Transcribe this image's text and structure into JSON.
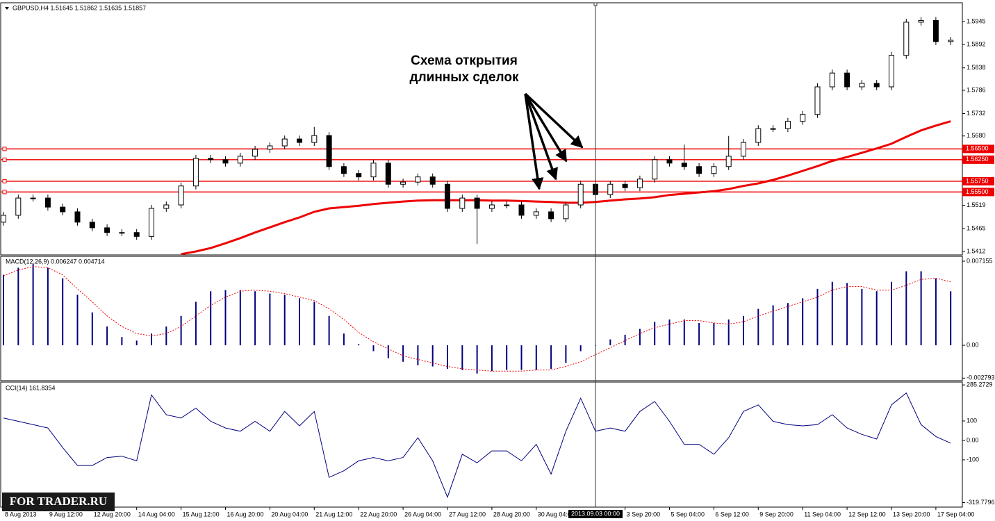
{
  "chart_data": [
    {
      "type": "candlestick",
      "title": "GBPUSD,H4  1.51645 1.51862 1.51635 1.51857",
      "annotations": [
        "Схема открытия",
        "длинных сделок"
      ],
      "categories": [
        "8 Aug 2013",
        null,
        null,
        "9 Aug 12:00",
        null,
        null,
        "12 Aug 20:00",
        null,
        null,
        "14 Aug 04:00",
        null,
        null,
        "15 Aug 12:00",
        null,
        null,
        "16 Aug 20:00",
        null,
        null,
        "20 Aug 04:00",
        null,
        null,
        "21 Aug 12:00",
        null,
        null,
        "22 Aug 20:00",
        null,
        null,
        "26 Aug 04:00",
        null,
        null,
        "27 Aug 12:00",
        null,
        null,
        "28 Aug 20:00",
        null,
        null,
        "30 Aug 04:00",
        null,
        null,
        null,
        "2013.09.03 00:00",
        null,
        "3 Sep 20:00",
        null,
        null,
        "5 Sep 04:00",
        null,
        null,
        "6 Sep 12:00",
        null,
        null,
        "9 Sep 20:00",
        null,
        null,
        "11 Sep 04:00",
        null,
        null,
        "12 Sep 12:00",
        null,
        null,
        "13 Sep 20:00",
        null,
        null,
        "17 Sep 04:00",
        null
      ],
      "crosshair": 40,
      "open": [
        1.548,
        1.5496,
        1.5536,
        1.5536,
        1.5515,
        1.5504,
        1.548,
        1.5467,
        1.5456,
        1.5456,
        1.5447,
        1.5512,
        1.552,
        1.5564,
        1.5628,
        1.5625,
        1.5617,
        1.5633,
        1.5649,
        1.5657,
        1.5673,
        1.5665,
        1.5681,
        1.5609,
        1.5593,
        1.5585,
        1.5617,
        1.5568,
        1.5573,
        1.5585,
        1.5568,
        1.5512,
        1.5536,
        1.5512,
        1.552,
        1.552,
        1.5496,
        1.5504,
        1.5488,
        1.552,
        1.5568,
        1.5544,
        1.5568,
        1.556,
        1.558,
        1.5625,
        1.5617,
        1.5609,
        1.5593,
        1.5609,
        1.5633,
        1.5665,
        1.5697,
        1.5697,
        1.5714,
        1.573,
        1.5794,
        1.5826,
        1.5794,
        1.5802,
        1.5794,
        1.5867,
        1.5944,
        1.5948,
        1.5899
      ],
      "high": [
        1.5504,
        1.5544,
        1.5544,
        1.5544,
        1.5523,
        1.5512,
        1.5488,
        1.5475,
        1.5464,
        1.5464,
        1.552,
        1.5528,
        1.5572,
        1.5636,
        1.5636,
        1.5633,
        1.5641,
        1.5657,
        1.5665,
        1.5681,
        1.5681,
        1.5701,
        1.5689,
        1.5617,
        1.5601,
        1.5625,
        1.5625,
        1.5581,
        1.5593,
        1.5593,
        1.5576,
        1.5544,
        1.5544,
        1.5528,
        1.5528,
        1.5528,
        1.5512,
        1.5512,
        1.5528,
        1.5576,
        1.5576,
        1.5576,
        1.5576,
        1.5588,
        1.5633,
        1.5633,
        1.566,
        1.5617,
        1.5617,
        1.568,
        1.5673,
        1.5705,
        1.5705,
        1.5722,
        1.5738,
        1.5802,
        1.5834,
        1.5834,
        1.581,
        1.581,
        1.5875,
        1.5952,
        1.5956,
        1.5956,
        1.591
      ],
      "low": [
        1.5472,
        1.5488,
        1.5528,
        1.5507,
        1.5496,
        1.5472,
        1.5459,
        1.5448,
        1.5448,
        1.5439,
        1.5439,
        1.5504,
        1.5512,
        1.5556,
        1.5617,
        1.5609,
        1.5609,
        1.5625,
        1.5641,
        1.5649,
        1.5657,
        1.5657,
        1.5601,
        1.5585,
        1.5577,
        1.5577,
        1.556,
        1.556,
        1.5565,
        1.556,
        1.5504,
        1.5504,
        1.543,
        1.5504,
        1.5512,
        1.5488,
        1.5488,
        1.548,
        1.548,
        1.5512,
        1.5536,
        1.5536,
        1.5552,
        1.5552,
        1.5572,
        1.5609,
        1.5601,
        1.5585,
        1.5585,
        1.5601,
        1.5625,
        1.5657,
        1.5689,
        1.5689,
        1.5706,
        1.5722,
        1.5786,
        1.5786,
        1.5786,
        1.5786,
        1.5786,
        1.5859,
        1.5936,
        1.5891,
        1.5891
      ],
      "close": [
        1.5496,
        1.5536,
        1.5536,
        1.5515,
        1.5504,
        1.548,
        1.5467,
        1.5456,
        1.5456,
        1.5447,
        1.5512,
        1.552,
        1.5564,
        1.5628,
        1.5625,
        1.5617,
        1.5633,
        1.5649,
        1.5657,
        1.5673,
        1.5665,
        1.5681,
        1.5609,
        1.5593,
        1.5585,
        1.5617,
        1.5568,
        1.5573,
        1.5585,
        1.5568,
        1.5512,
        1.5536,
        1.5512,
        1.552,
        1.552,
        1.5496,
        1.5504,
        1.5488,
        1.552,
        1.5568,
        1.5544,
        1.5568,
        1.556,
        1.558,
        1.5625,
        1.5617,
        1.5609,
        1.5593,
        1.5609,
        1.5633,
        1.5665,
        1.5697,
        1.5697,
        1.5714,
        1.573,
        1.5794,
        1.5826,
        1.5794,
        1.5802,
        1.5794,
        1.5867,
        1.5944,
        1.5948,
        1.5899,
        1.5902
      ],
      "lines": [
        {
          "color": "#ee0000",
          "values": [
            null,
            null,
            null,
            null,
            null,
            null,
            null,
            null,
            null,
            null,
            null,
            null,
            1.5406,
            1.5412,
            1.542,
            1.5431,
            1.5443,
            1.5456,
            1.5468,
            1.548,
            1.5491,
            1.5504,
            1.5512,
            1.5515,
            1.5518,
            1.5522,
            1.5525,
            1.5528,
            1.553,
            1.5531,
            1.5531,
            1.5531,
            1.5531,
            1.553,
            1.553,
            1.5529,
            1.5528,
            1.5527,
            1.5525,
            1.5525,
            1.5527,
            1.553,
            1.5533,
            1.5535,
            1.5538,
            1.5543,
            1.5546,
            1.5549,
            1.5552,
            1.5557,
            1.5564,
            1.557,
            1.5578,
            1.5588,
            1.5599,
            1.561,
            1.5622,
            1.5631,
            1.5641,
            1.5651,
            1.5662,
            1.5678,
            1.5693,
            1.5704,
            1.5714
          ]
        }
      ],
      "hlines": [
        {
          "value": 1.565,
          "label": "1.56500"
        },
        {
          "value": 1.5625,
          "label": "1.56250"
        },
        {
          "value": 1.5575,
          "label": "1.55750"
        },
        {
          "value": 1.555,
          "label": "1.55500"
        }
      ],
      "hline_color": "#ee0000",
      "ylim": [
        1.5404,
        1.5989
      ],
      "yticks": [
        1.5945,
        1.5892,
        1.5838,
        1.5786,
        1.5732,
        {
          "value": 1.568,
          "label": "1.5680"
        },
        1.5519,
        1.5465,
        1.5412
      ]
    },
    {
      "type": "macd",
      "title": "MACD(12,26,9) 0.006247 0.004714",
      "color": "#000080",
      "signal_color": "#ee0000",
      "values": [
        0.006,
        0.0066,
        0.0069,
        0.0066,
        0.0057,
        0.0043,
        0.0028,
        0.0016,
        0.0007,
        0.0004,
        0.001,
        0.0016,
        0.0025,
        0.0037,
        0.0046,
        0.0047,
        0.0047,
        0.0046,
        0.0044,
        0.0043,
        0.004,
        0.0037,
        0.0025,
        0.001,
        0.0001,
        -0.0005,
        -0.0011,
        -0.0014,
        -0.0017,
        -0.0018,
        -0.002,
        -0.0021,
        -0.0024,
        -0.0022,
        -0.0021,
        -0.0021,
        -0.0021,
        -0.002,
        -0.0015,
        -0.0005,
        0.0,
        0.0005,
        0.0009,
        0.0014,
        0.002,
        0.0022,
        0.0022,
        0.0019,
        0.0019,
        0.0022,
        0.0025,
        0.0031,
        0.0034,
        0.0036,
        0.004,
        0.0048,
        0.0054,
        0.0053,
        0.0048,
        0.0046,
        0.0054,
        0.0063,
        0.0063,
        0.0057,
        0.0046
      ],
      "signal": [
        0.0059,
        0.0064,
        0.0067,
        0.0066,
        0.006,
        0.0048,
        0.0037,
        0.0025,
        0.0016,
        0.001,
        0.0008,
        0.001,
        0.0016,
        0.0025,
        0.0034,
        0.0041,
        0.0046,
        0.0047,
        0.0046,
        0.0044,
        0.0041,
        0.0038,
        0.0031,
        0.0022,
        0.0011,
        0.0003,
        -0.0003,
        -0.0009,
        -0.0012,
        -0.0015,
        -0.0018,
        -0.002,
        -0.0021,
        -0.0022,
        -0.0022,
        -0.0022,
        -0.0021,
        -0.0021,
        -0.0018,
        -0.0014,
        -0.0008,
        -0.0002,
        0.0004,
        0.001,
        0.0015,
        0.0018,
        0.0021,
        0.0021,
        0.0019,
        0.0018,
        0.002,
        0.0025,
        0.0029,
        0.0033,
        0.0037,
        0.0041,
        0.0047,
        0.005,
        0.005,
        0.0047,
        0.0047,
        0.0051,
        0.0056,
        0.0057,
        0.0054
      ],
      "ylim": [
        -0.00301,
        0.00757
      ],
      "yticks": [
        0.007155,
        {
          "value": 0,
          "label": "0.00"
        },
        -0.002793
      ]
    },
    {
      "type": "line",
      "title": "CCI(14) 161.8354",
      "color": "#000080",
      "values": [
        115,
        98,
        81,
        64,
        -37,
        -129,
        -129,
        -88,
        -81,
        -105,
        234,
        132,
        115,
        166,
        98,
        64,
        47,
        98,
        47,
        149,
        75,
        149,
        -190,
        -156,
        -105,
        -88,
        -105,
        -88,
        14,
        -105,
        -292,
        -71,
        -115,
        -54,
        -54,
        -105,
        -20,
        -173,
        47,
        217,
        47,
        64,
        47,
        149,
        200,
        98,
        -20,
        -20,
        -71,
        14,
        149,
        183,
        98,
        81,
        75,
        81,
        132,
        64,
        31,
        7,
        183,
        244,
        81,
        20,
        -14
      ],
      "ylim": [
        -343,
        300
      ],
      "yticks": [
        285.2729,
        100,
        {
          "value": 0,
          "label": "0.00"
        },
        -100,
        -319.7796
      ]
    }
  ],
  "watermark": "FOR TRADER.RU"
}
